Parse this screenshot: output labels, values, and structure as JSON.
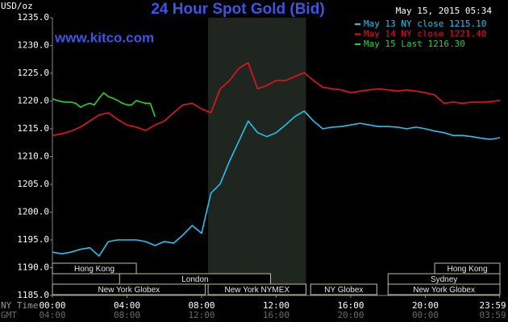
{
  "chart_data": {
    "type": "line",
    "title": "24 Hour Spot Gold (Bid)",
    "website": "www.kitco.com",
    "timestamp": "May 15, 2015 05:34",
    "y_label": "USD/oz",
    "x_label": "NY Time",
    "x2_label": "GMT",
    "xlim": [
      0,
      24
    ],
    "ylim": [
      1185,
      1235
    ],
    "yticks": [
      {
        "value": 1185,
        "label": "1185.0"
      },
      {
        "value": 1190,
        "label": "1190.0"
      },
      {
        "value": 1195,
        "label": "1195.0"
      },
      {
        "value": 1200,
        "label": "1200.0"
      },
      {
        "value": 1205,
        "label": "1205.0"
      },
      {
        "value": 1210,
        "label": "1210.0"
      },
      {
        "value": 1215,
        "label": "1215.0"
      },
      {
        "value": 1220,
        "label": "1220.0"
      },
      {
        "value": 1225,
        "label": "1225.0"
      },
      {
        "value": 1230,
        "label": "1230.0"
      },
      {
        "value": 1235,
        "label": "1235.0"
      }
    ],
    "xticks": [
      {
        "value": 0,
        "label": "00:00"
      },
      {
        "value": 4,
        "label": "04:00"
      },
      {
        "value": 8,
        "label": "08:00"
      },
      {
        "value": 12,
        "label": "12:00"
      },
      {
        "value": 16,
        "label": "16:00"
      },
      {
        "value": 20,
        "label": "20:00"
      },
      {
        "value": 23.983,
        "label": "23:59"
      }
    ],
    "x2ticks": [
      {
        "value": 0,
        "label": "04:00"
      },
      {
        "value": 4,
        "label": "08:00"
      },
      {
        "value": 8,
        "label": "12:00"
      },
      {
        "value": 12,
        "label": "16:00"
      },
      {
        "value": 16,
        "label": "20:00"
      },
      {
        "value": 20,
        "label": "00:00"
      },
      {
        "value": 23.983,
        "label": "03:59"
      }
    ],
    "grid": false,
    "legend": "upper right",
    "highlight": [
      8.35,
      13.6
    ],
    "sessions": [
      {
        "label": "Hong Kong",
        "row": 0,
        "start": 0,
        "end": 4.5
      },
      {
        "label": "Hong Kong",
        "row": 0,
        "start": 20.5,
        "end": 24
      },
      {
        "label": "London",
        "row": 1,
        "start": 3.6,
        "end": 11.7
      },
      {
        "label": "Sydney",
        "row": 1,
        "start": 18,
        "end": 24
      },
      {
        "label": "New York Globex",
        "row": 2,
        "start": 0,
        "end": 8.2
      },
      {
        "label": "New York NYMEX",
        "row": 2,
        "start": 8.35,
        "end": 13.6
      },
      {
        "label": "NY Globex",
        "row": 2,
        "start": 13.85,
        "end": 17.4
      },
      {
        "label": "New York Globex",
        "row": 2,
        "start": 18,
        "end": 24
      }
    ],
    "series": [
      {
        "name": "May 13 NY close 1215.10",
        "color": "#22c4f0",
        "x": [
          0,
          0.5,
          1,
          1.5,
          2,
          2.5,
          3,
          3.5,
          4,
          4.5,
          5,
          5.5,
          6,
          6.5,
          7,
          7.5,
          8,
          8.5,
          9,
          9.5,
          10,
          10.5,
          11,
          11.5,
          12,
          12.5,
          13,
          13.5,
          14,
          14.5,
          15,
          15.5,
          16,
          16.5,
          17,
          17.5,
          18,
          18.5,
          19,
          19.5,
          20,
          20.5,
          21,
          21.5,
          22,
          22.5,
          23,
          23.5,
          24
        ],
        "values": [
          1192.8,
          1192.5,
          1192.8,
          1193.3,
          1193.6,
          1192.1,
          1194.7,
          1195.0,
          1195.0,
          1195.0,
          1194.7,
          1194.0,
          1194.7,
          1194.4,
          1195.9,
          1197.6,
          1196.2,
          1203.4,
          1205.1,
          1209.2,
          1212.8,
          1216.4,
          1214.3,
          1213.6,
          1214.3,
          1215.7,
          1217.2,
          1218.2,
          1216.4,
          1215.0,
          1215.3,
          1215.4,
          1215.7,
          1216.0,
          1215.7,
          1215.4,
          1215.4,
          1215.3,
          1215.0,
          1215.3,
          1215.0,
          1214.6,
          1214.3,
          1213.8,
          1213.8,
          1213.6,
          1213.3,
          1213.1,
          1213.4
        ]
      },
      {
        "name": "May 14 NY close 1221.40",
        "color": "#e8141c",
        "x": [
          0,
          0.5,
          1,
          1.5,
          2,
          2.5,
          3,
          3.5,
          4,
          4.5,
          5,
          5.5,
          6,
          6.5,
          7,
          7.5,
          8,
          8.5,
          9,
          9.5,
          10,
          10.5,
          11,
          11.5,
          12,
          12.5,
          13,
          13.5,
          14,
          14.5,
          15,
          15.5,
          16,
          16.5,
          17,
          17.5,
          18,
          18.5,
          19,
          19.5,
          20,
          20.5,
          21,
          21.5,
          22,
          22.5,
          23,
          23.5,
          24
        ],
        "values": [
          1213.8,
          1214.1,
          1214.6,
          1215.3,
          1216.4,
          1217.5,
          1217.9,
          1216.7,
          1215.7,
          1215.3,
          1214.7,
          1215.7,
          1216.4,
          1217.9,
          1219.3,
          1219.6,
          1218.6,
          1217.9,
          1222.2,
          1223.7,
          1225.9,
          1226.9,
          1222.2,
          1222.8,
          1223.7,
          1223.7,
          1224.4,
          1225.1,
          1223.7,
          1222.5,
          1222.2,
          1222.0,
          1221.5,
          1221.8,
          1222.0,
          1222.2,
          1222.0,
          1221.8,
          1222.0,
          1221.8,
          1221.5,
          1221.1,
          1219.6,
          1219.8,
          1219.6,
          1219.8,
          1219.8,
          1219.9,
          1220.1
        ]
      },
      {
        "name": "May 15 Last 1216.30",
        "color": "#22d628",
        "x": [
          0,
          0.25,
          0.5,
          0.75,
          1,
          1.25,
          1.5,
          1.75,
          2,
          2.25,
          2.5,
          2.75,
          3,
          3.25,
          3.5,
          3.75,
          4,
          4.25,
          4.5,
          4.75,
          5,
          5.25,
          5.5
        ],
        "values": [
          1220.4,
          1220.1,
          1219.9,
          1219.8,
          1219.8,
          1219.6,
          1218.9,
          1219.3,
          1219.6,
          1219.3,
          1220.5,
          1221.5,
          1220.8,
          1220.5,
          1220.1,
          1219.6,
          1219.3,
          1219.3,
          1220.1,
          1219.8,
          1219.6,
          1219.6,
          1217.2
        ]
      }
    ]
  }
}
